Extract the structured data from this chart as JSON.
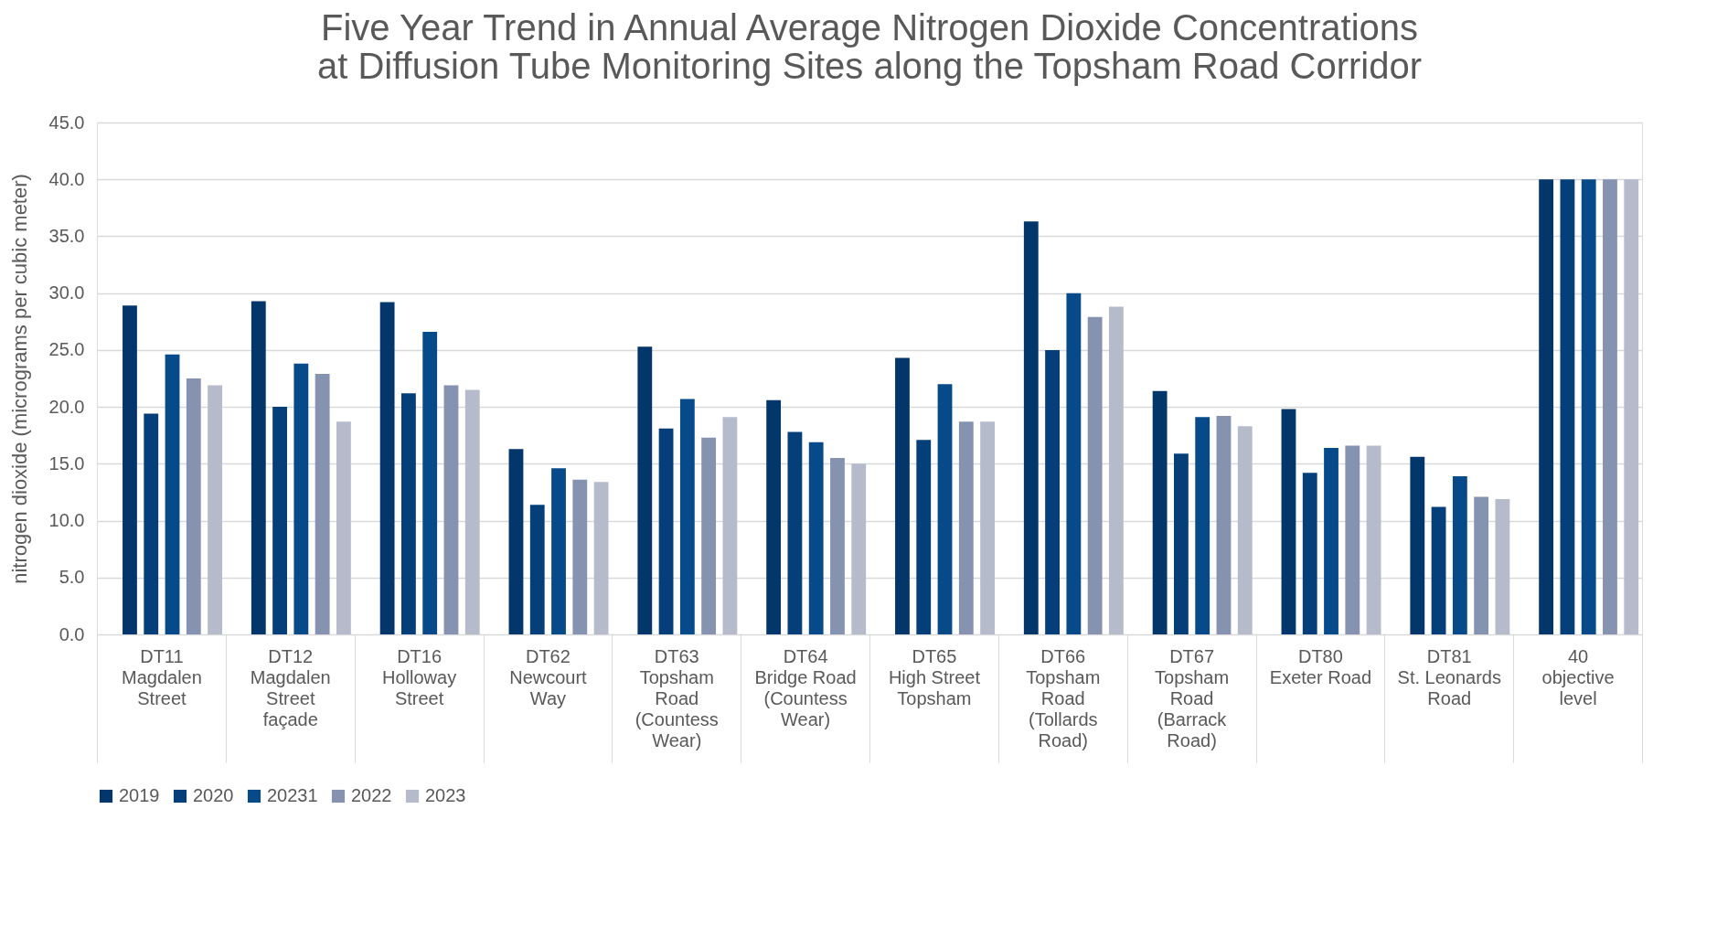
{
  "chart_data": {
    "type": "bar",
    "title": [
      "Five Year Trend in Annual Average Nitrogen Dioxide Concentrations",
      "at Diffusion Tube Monitoring Sites along the Topsham Road Corridor"
    ],
    "ylabel": "nitrogen dioxide (micrograms per cubic meter)",
    "categories": [
      "DT11\n\nMagdalen\nStreet",
      "DT12\n\nMagdalen\nStreet\nfaçade",
      "DT16\n\nHolloway\nStreet",
      "DT62\n\nNewcourt\nWay",
      "DT63\n\nTopsham\nRoad\n(Countess\nWear)",
      "DT64\n\nBridge Road\n(Countess\nWear)",
      "DT65\n\nHigh Street\nTopsham",
      "DT66\n\nTopsham\nRoad\n(Tollards\nRoad)",
      "DT67\n\nTopsham\nRoad\n(Barrack\nRoad)",
      "DT80\n\nExeter Road",
      "DT81\n\nSt. Leonards\nRoad",
      "40\n\nobjective\nlevel"
    ],
    "series": [
      {
        "name": "2019",
        "color": "#03366a",
        "values": [
          28.9,
          29.3,
          29.2,
          16.3,
          25.3,
          20.6,
          24.3,
          36.3,
          21.4,
          19.8,
          15.6,
          40
        ]
      },
      {
        "name": "2020",
        "color": "#053f7a",
        "values": [
          19.4,
          20.0,
          21.2,
          11.4,
          18.1,
          17.8,
          17.1,
          25.0,
          15.9,
          14.2,
          11.2,
          40
        ]
      },
      {
        "name": "20231",
        "color": "#074a8a",
        "values": [
          24.6,
          23.8,
          26.6,
          14.6,
          20.7,
          16.9,
          22.0,
          30.0,
          19.1,
          16.4,
          13.9,
          40
        ]
      },
      {
        "name": "2022",
        "color": "#8592b0",
        "values": [
          22.5,
          22.9,
          21.9,
          13.6,
          17.3,
          15.5,
          18.7,
          27.9,
          19.2,
          16.6,
          12.1,
          40
        ]
      },
      {
        "name": "2023",
        "color": "#b6bbcc",
        "values": [
          21.9,
          18.7,
          21.5,
          13.4,
          19.1,
          15.0,
          18.7,
          28.8,
          18.3,
          16.6,
          11.9,
          40
        ]
      }
    ],
    "ylim": [
      0,
      45
    ],
    "yticks": [
      {
        "value": 0,
        "label": "0.0"
      },
      {
        "value": 5,
        "label": "5.0"
      },
      {
        "value": 10,
        "label": "10.0"
      },
      {
        "value": 15,
        "label": "15.0"
      },
      {
        "value": 20,
        "label": "20.0"
      },
      {
        "value": 25,
        "label": "25.0"
      },
      {
        "value": 30,
        "label": "30.0"
      },
      {
        "value": 35,
        "label": "35.0"
      },
      {
        "value": 40,
        "label": "40.0"
      },
      {
        "value": 45,
        "label": "45.0"
      }
    ],
    "grid": "y",
    "legend": "bottom"
  }
}
